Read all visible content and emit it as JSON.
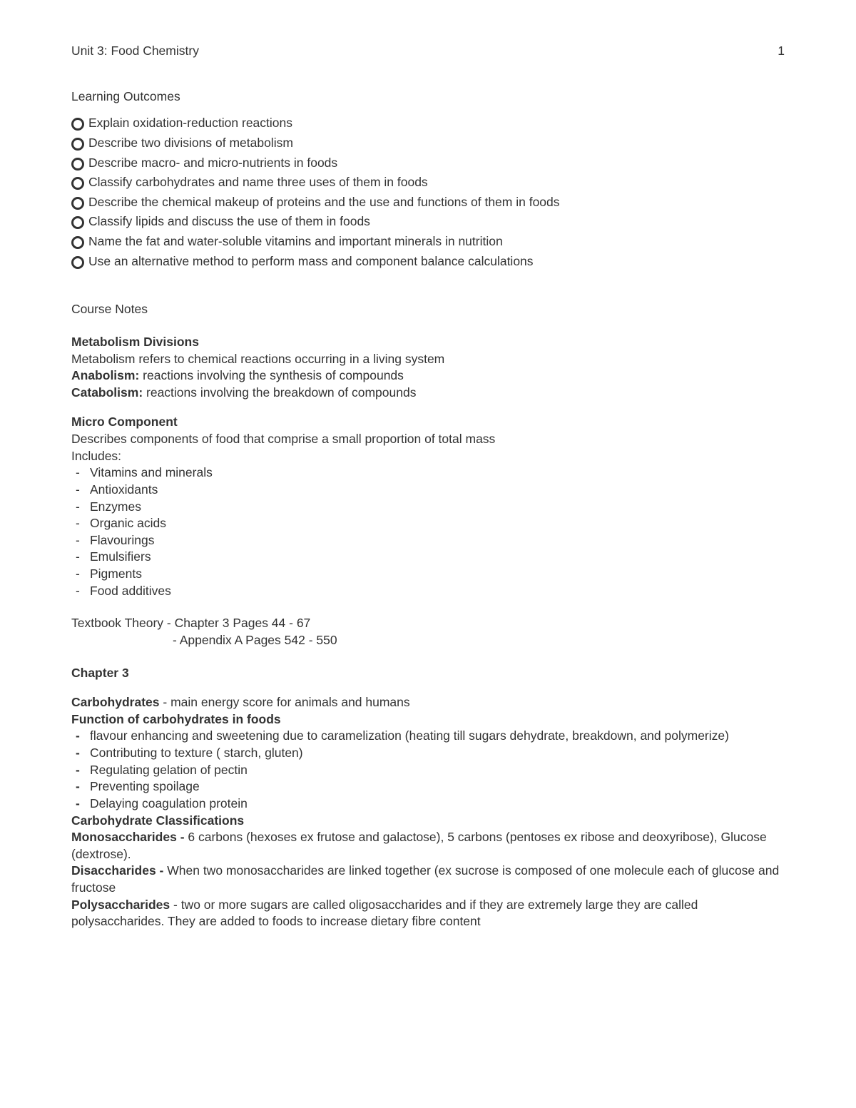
{
  "header": {
    "title": "Unit 3: Food Chemistry",
    "page_number": "1"
  },
  "learning_outcomes": {
    "title": "Learning Outcomes",
    "items": [
      "Explain oxidation-reduction reactions",
      "Describe two divisions of metabolism",
      "Describe macro- and micro-nutrients in foods",
      "Classify carbohydrates and name three uses of them in foods",
      "Describe the chemical makeup of proteins and the use and functions of them in foods",
      "Classify lipids and discuss the use of them in foods",
      "Name the fat and water-soluble vitamins and important minerals in nutrition",
      "Use an alternative method to perform mass and component balance calculations"
    ]
  },
  "course_notes": {
    "title": "Course Notes"
  },
  "metabolism": {
    "heading": "Metabolism Divisions",
    "intro": "Metabolism refers to chemical reactions occurring in a living system",
    "anabolism_label": "Anabolism:",
    "anabolism_text": " reactions involving the synthesis of compounds",
    "catabolism_label": "Catabolism:",
    "catabolism_text": " reactions involving the breakdown of compounds"
  },
  "micro_component": {
    "heading": "Micro Component",
    "desc": "Describes components of food that comprise a small proportion of total mass",
    "includes_label": "Includes:",
    "items": [
      "Vitamins and minerals",
      "Antioxidants",
      "Enzymes",
      "Organic acids",
      "Flavourings",
      "Emulsifiers",
      "Pigments",
      "Food additives"
    ]
  },
  "textbook": {
    "line1": "Textbook Theory - Chapter 3 Pages 44 - 67",
    "line2": "- Appendix A Pages 542 - 550"
  },
  "chapter3": {
    "heading": "Chapter 3",
    "carb_label": "Carbohydrates",
    "carb_text": " - main energy score for animals and humans",
    "function_heading": "Function of carbohydrates in foods",
    "functions": [
      "flavour enhancing and sweetening due to caramelization (heating till sugars dehydrate, breakdown, and polymerize)",
      "Contributing to texture ( starch, gluten)",
      "Regulating gelation of pectin",
      "Preventing spoilage",
      "Delaying coagulation protein"
    ],
    "classifications_heading": "Carbohydrate Classifications",
    "mono_label": "Monosaccharides -",
    "mono_text": " 6 carbons (hexoses ex frutose and galactose), 5 carbons (pentoses ex ribose and deoxyribose), Glucose (dextrose).",
    "di_label": "Disaccharides -",
    "di_text": " When two monosaccharides are linked together (ex sucrose is composed of one molecule each of glucose and fructose",
    "poly_label": "Polysaccharides",
    "poly_text": " - two or more sugars are called oligosaccharides and if they are extremely large they are called polysaccharides. They are added to foods to increase dietary fibre content"
  }
}
